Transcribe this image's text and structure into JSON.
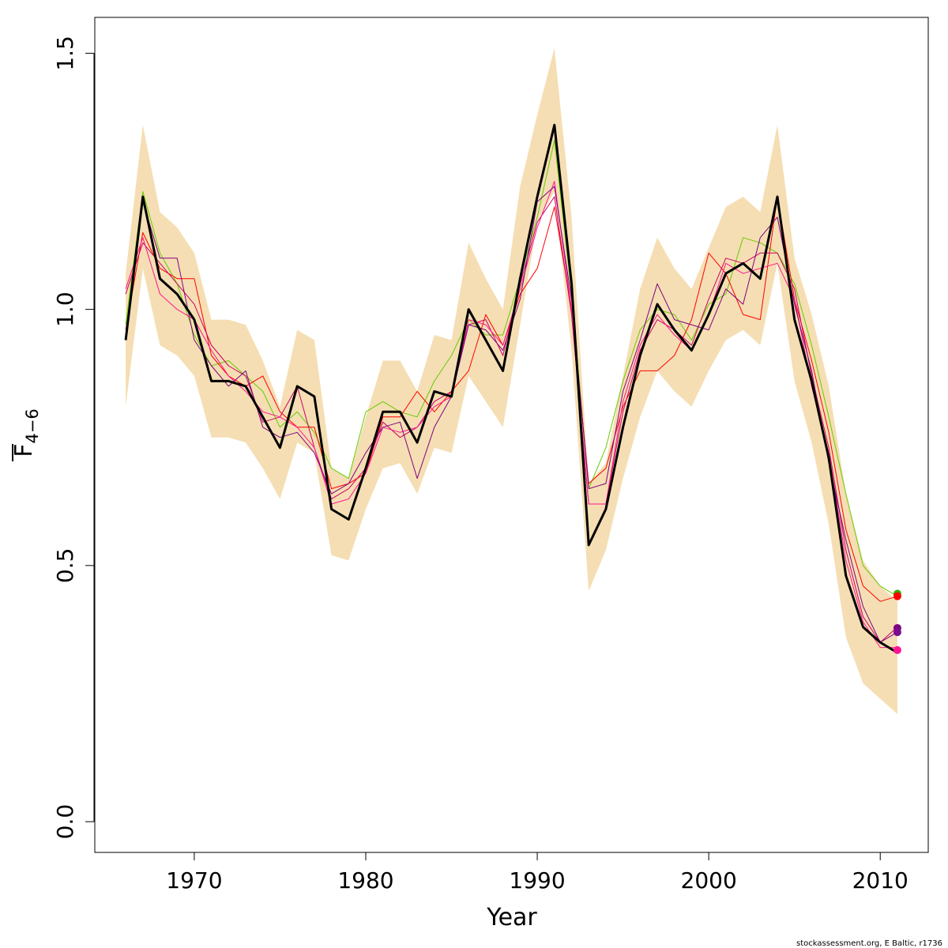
{
  "chart_data": {
    "type": "line",
    "xlabel": "Year",
    "ylabel_main": "F",
    "ylabel_sub": "4−6",
    "xlim": [
      1964.2,
      2012.8
    ],
    "ylim": [
      -0.06,
      1.57
    ],
    "x_ticks": [
      1970,
      1980,
      1990,
      2000,
      2010
    ],
    "x_tick_labels": [
      "1970",
      "1980",
      "1990",
      "2000",
      "2010"
    ],
    "y_ticks": [
      0.0,
      0.5,
      1.0,
      1.5
    ],
    "y_tick_labels": [
      "0.0",
      "0.5",
      "1.0",
      "1.5"
    ],
    "credit": "stockassessment.org, E Baltic, r1736",
    "band_color": "#f5deb3",
    "years": [
      1966,
      1967,
      1968,
      1969,
      1970,
      1971,
      1972,
      1973,
      1974,
      1975,
      1976,
      1977,
      1978,
      1979,
      1980,
      1981,
      1982,
      1983,
      1984,
      1985,
      1986,
      1987,
      1988,
      1989,
      1990,
      1991,
      1992,
      1993,
      1994,
      1995,
      1996,
      1997,
      1998,
      1999,
      2000,
      2001,
      2002,
      2003,
      2004,
      2005,
      2006,
      2007,
      2008,
      2009,
      2010,
      2011
    ],
    "band_lower": [
      0.81,
      1.08,
      0.93,
      0.91,
      0.87,
      0.75,
      0.75,
      0.74,
      0.69,
      0.63,
      0.74,
      0.72,
      0.52,
      0.51,
      0.61,
      0.69,
      0.7,
      0.64,
      0.73,
      0.72,
      0.87,
      0.82,
      0.77,
      0.97,
      1.17,
      1.23,
      0.92,
      0.45,
      0.53,
      0.67,
      0.79,
      0.88,
      0.84,
      0.81,
      0.88,
      0.94,
      0.96,
      0.93,
      1.09,
      0.86,
      0.74,
      0.58,
      0.36,
      0.27,
      0.24,
      0.21
    ],
    "band_upper": [
      1.07,
      1.36,
      1.19,
      1.16,
      1.11,
      0.98,
      0.98,
      0.97,
      0.9,
      0.81,
      0.96,
      0.94,
      0.69,
      0.67,
      0.79,
      0.9,
      0.9,
      0.84,
      0.95,
      0.94,
      1.13,
      1.06,
      1.0,
      1.24,
      1.38,
      1.51,
      1.18,
      0.66,
      0.7,
      0.87,
      1.04,
      1.14,
      1.08,
      1.04,
      1.12,
      1.2,
      1.22,
      1.19,
      1.36,
      1.1,
      0.99,
      0.85,
      0.64,
      0.51,
      0.46,
      0.43
    ],
    "series": [
      {
        "name": "",
        "color": "#000000",
        "width": 3,
        "values": [
          0.94,
          1.22,
          1.06,
          1.03,
          0.98,
          0.86,
          0.86,
          0.85,
          0.79,
          0.73,
          0.85,
          0.83,
          0.61,
          0.59,
          0.69,
          0.8,
          0.8,
          0.74,
          0.84,
          0.83,
          1.0,
          0.94,
          0.88,
          1.06,
          1.22,
          1.36,
          1.05,
          0.54,
          0.61,
          0.77,
          0.91,
          1.01,
          0.96,
          0.92,
          0.99,
          1.07,
          1.09,
          1.06,
          1.22,
          0.98,
          0.86,
          0.71,
          0.48,
          0.38,
          0.35,
          0.33
        ]
      },
      {
        "name": "",
        "color": "#66cc00",
        "width": 1,
        "values": [
          0.97,
          1.23,
          1.11,
          1.05,
          0.95,
          0.89,
          0.9,
          0.87,
          0.84,
          0.77,
          0.8,
          0.76,
          0.69,
          0.67,
          0.8,
          0.82,
          0.8,
          0.79,
          0.86,
          0.91,
          0.98,
          0.95,
          0.95,
          1.06,
          1.18,
          1.33,
          1.03,
          0.65,
          0.73,
          0.86,
          0.96,
          1.0,
          0.99,
          0.94,
          1.01,
          1.03,
          1.14,
          1.13,
          1.11,
          1.05,
          0.93,
          0.79,
          0.64,
          0.5,
          0.46,
          0.44
        ]
      },
      {
        "name": "",
        "color": "#ff0000",
        "width": 1,
        "values": [
          0.96,
          1.15,
          1.08,
          1.06,
          1.06,
          0.91,
          0.87,
          0.85,
          0.87,
          0.8,
          0.77,
          0.77,
          0.65,
          0.66,
          0.68,
          0.79,
          0.79,
          0.84,
          0.8,
          0.84,
          0.88,
          0.99,
          0.93,
          1.03,
          1.08,
          1.2,
          1.0,
          0.66,
          0.69,
          0.81,
          0.88,
          0.88,
          0.91,
          0.98,
          1.11,
          1.07,
          0.99,
          0.98,
          1.22,
          1.02,
          0.9,
          0.76,
          0.57,
          0.46,
          0.43,
          0.44
        ]
      },
      {
        "name": "",
        "color": "#cc0066",
        "width": 1,
        "values": [
          1.03,
          1.13,
          1.09,
          1.05,
          1.01,
          0.93,
          0.89,
          0.87,
          0.78,
          0.79,
          0.85,
          0.73,
          0.63,
          0.65,
          0.69,
          0.78,
          0.75,
          0.77,
          0.82,
          0.84,
          0.97,
          0.98,
          0.91,
          1.05,
          1.17,
          1.22,
          0.99,
          0.62,
          0.62,
          0.8,
          0.92,
          0.98,
          0.96,
          0.93,
          1.02,
          1.1,
          1.09,
          1.11,
          1.11,
          1.04,
          0.87,
          0.73,
          0.53,
          0.4,
          0.35,
          0.38
        ]
      },
      {
        "name": "",
        "color": "#ff1493",
        "width": 1,
        "values": [
          1.04,
          1.14,
          1.03,
          1.0,
          0.98,
          0.92,
          0.87,
          0.84,
          0.8,
          0.79,
          0.77,
          0.73,
          0.62,
          0.63,
          0.68,
          0.77,
          0.76,
          0.77,
          0.81,
          0.83,
          0.98,
          0.97,
          0.93,
          1.04,
          1.16,
          1.25,
          1.0,
          0.62,
          0.62,
          0.82,
          0.93,
          0.99,
          0.95,
          0.92,
          0.99,
          1.09,
          1.07,
          1.08,
          1.09,
          1.02,
          0.85,
          0.72,
          0.51,
          0.39,
          0.34,
          0.34
        ]
      },
      {
        "name": "",
        "color": "#800080",
        "width": 1,
        "values": [
          0.95,
          1.21,
          1.1,
          1.1,
          0.94,
          0.89,
          0.85,
          0.88,
          0.77,
          0.75,
          0.76,
          0.72,
          0.64,
          0.66,
          0.72,
          0.77,
          0.78,
          0.67,
          0.77,
          0.83,
          0.97,
          0.96,
          0.92,
          1.02,
          1.21,
          1.24,
          1.02,
          0.65,
          0.66,
          0.84,
          0.94,
          1.05,
          0.98,
          0.97,
          0.96,
          1.04,
          1.01,
          1.14,
          1.18,
          1.01,
          0.88,
          0.7,
          0.55,
          0.42,
          0.35,
          0.37
        ]
      }
    ],
    "end_points": [
      {
        "color": "#33aa00",
        "value": 0.445
      },
      {
        "color": "#ff0000",
        "value": 0.44
      },
      {
        "color": "#800080",
        "value": 0.378
      },
      {
        "color": "#7a0d8f",
        "value": 0.37
      },
      {
        "color": "#ff1493",
        "value": 0.335
      }
    ]
  }
}
